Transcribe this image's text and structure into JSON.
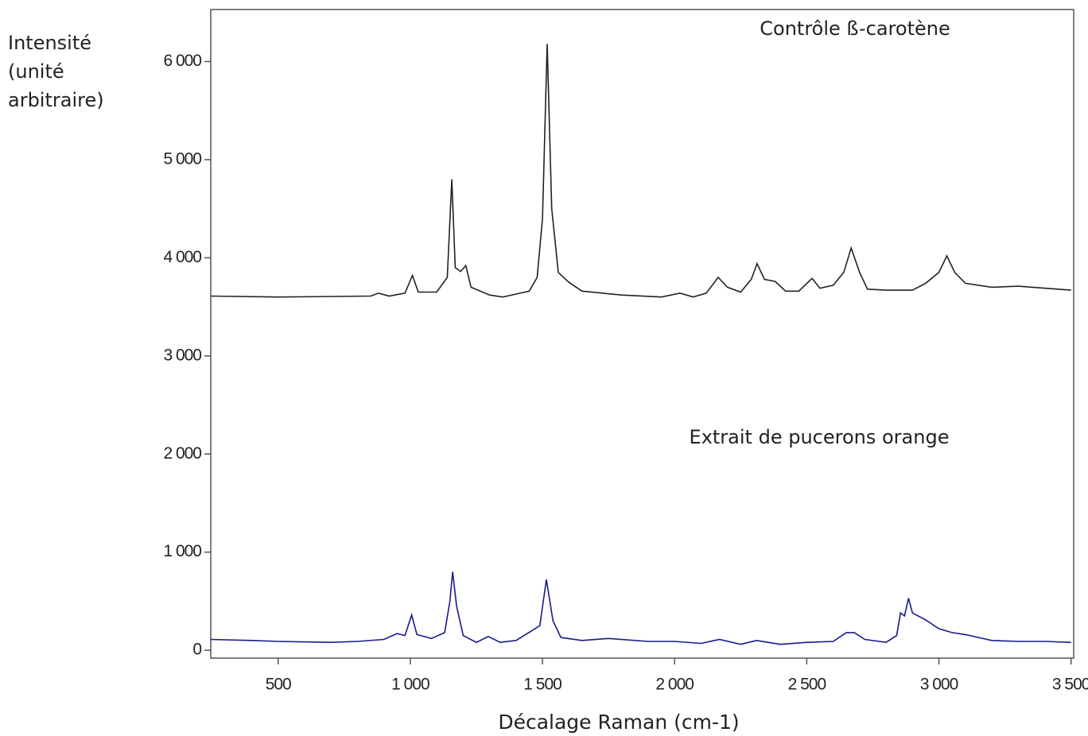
{
  "chart_data": {
    "type": "line",
    "y_label": "Intensité (unité arbitraire)",
    "x_label": "Décalage Raman (cm-1)",
    "annotations": [
      "Contrôle ß-carotène",
      "Extrait de pucerons orange"
    ],
    "xlim": [
      245,
      3510
    ],
    "ylim": [
      -80,
      6530
    ],
    "xticks": [
      500,
      {
        "value": 1000,
        "label": "1 000"
      },
      {
        "value": 1500,
        "label": "1 500"
      },
      {
        "value": 2000,
        "label": "2 000"
      },
      {
        "value": 2500,
        "label": "2 500"
      },
      {
        "value": 3000,
        "label": "3 000"
      },
      {
        "value": 3500,
        "label": "3 500"
      }
    ],
    "yticks": [
      0,
      {
        "value": 1000,
        "label": "1 000"
      },
      {
        "value": 2000,
        "label": "2 000"
      },
      {
        "value": 3000,
        "label": "3 000"
      },
      {
        "value": 4000,
        "label": "4 000"
      },
      {
        "value": 5000,
        "label": "5 000"
      },
      {
        "value": 6000,
        "label": "6 000"
      }
    ],
    "series": [
      {
        "color": "#222222",
        "x": [
          245,
          500,
          850,
          880,
          920,
          980,
          1008,
          1030,
          1100,
          1140,
          1157,
          1170,
          1190,
          1210,
          1230,
          1300,
          1350,
          1400,
          1450,
          1480,
          1500,
          1518,
          1535,
          1560,
          1600,
          1650,
          1800,
          1950,
          2020,
          2070,
          2120,
          2165,
          2200,
          2250,
          2290,
          2312,
          2340,
          2380,
          2420,
          2470,
          2520,
          2550,
          2600,
          2640,
          2668,
          2700,
          2730,
          2800,
          2900,
          2950,
          3000,
          3030,
          3060,
          3100,
          3200,
          3300,
          3400,
          3500
        ],
        "values": [
          3610,
          3600,
          3610,
          3640,
          3610,
          3640,
          3820,
          3650,
          3650,
          3800,
          4800,
          3900,
          3860,
          3920,
          3700,
          3620,
          3600,
          3630,
          3660,
          3800,
          4400,
          6180,
          4500,
          3850,
          3750,
          3660,
          3620,
          3600,
          3640,
          3600,
          3640,
          3800,
          3700,
          3650,
          3780,
          3940,
          3780,
          3760,
          3660,
          3660,
          3790,
          3690,
          3720,
          3850,
          4100,
          3850,
          3680,
          3670,
          3670,
          3740,
          3850,
          4020,
          3850,
          3740,
          3700,
          3710,
          3690,
          3670
        ]
      },
      {
        "color": "#1a1a8c",
        "x": [
          245,
          400,
          500,
          700,
          800,
          900,
          950,
          980,
          1005,
          1025,
          1080,
          1130,
          1150,
          1160,
          1175,
          1200,
          1250,
          1295,
          1340,
          1400,
          1460,
          1490,
          1515,
          1540,
          1570,
          1650,
          1750,
          1900,
          2000,
          2100,
          2170,
          2250,
          2310,
          2400,
          2500,
          2600,
          2650,
          2680,
          2720,
          2800,
          2840,
          2855,
          2870,
          2885,
          2900,
          2950,
          3000,
          3050,
          3100,
          3200,
          3300,
          3400,
          3500
        ],
        "values": [
          110,
          100,
          90,
          80,
          90,
          110,
          170,
          150,
          360,
          160,
          120,
          180,
          500,
          800,
          450,
          150,
          80,
          140,
          80,
          100,
          200,
          250,
          720,
          300,
          130,
          100,
          120,
          90,
          90,
          70,
          110,
          60,
          100,
          60,
          80,
          90,
          180,
          180,
          110,
          80,
          150,
          380,
          350,
          530,
          380,
          310,
          220,
          180,
          160,
          100,
          90,
          90,
          80
        ]
      }
    ]
  }
}
